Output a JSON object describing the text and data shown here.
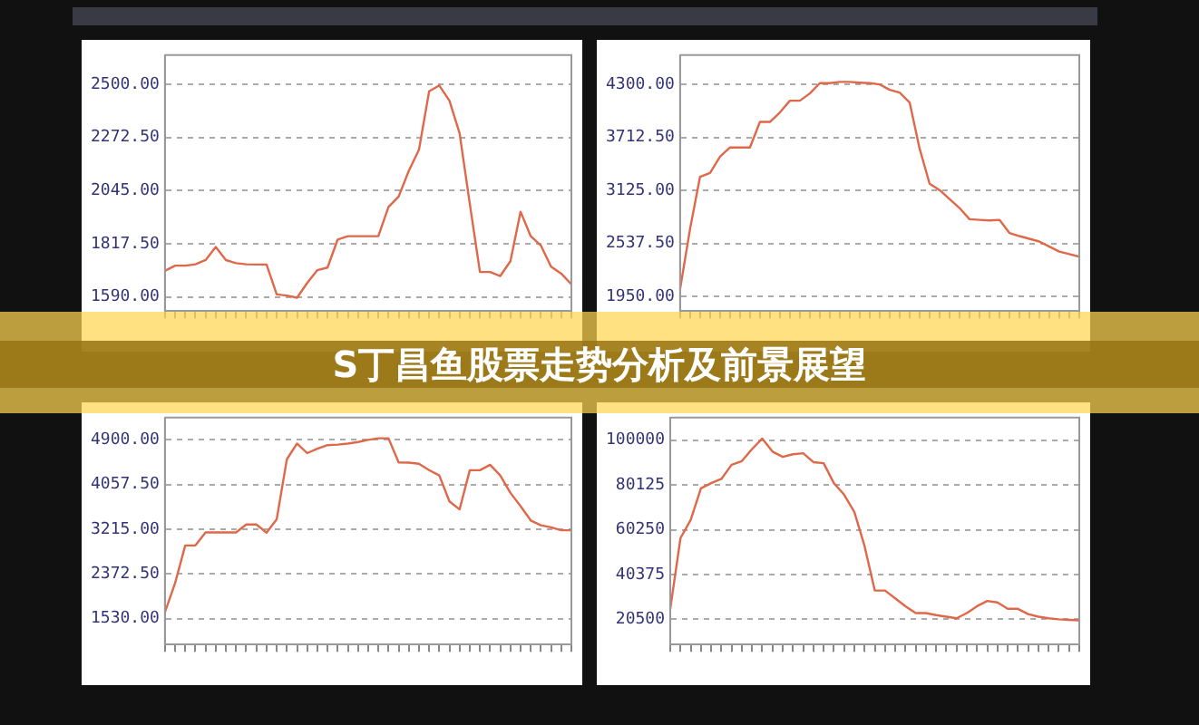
{
  "chart_data": [
    {
      "type": "line",
      "title": "S丁昌鱼股票走势分析及前景展望",
      "categories": [
        null,
        null,
        null,
        null,
        null,
        null,
        null,
        null,
        null,
        null,
        null,
        null,
        null,
        null,
        null,
        null,
        null,
        null,
        null,
        null,
        null,
        null,
        null,
        null,
        null,
        null,
        null,
        null,
        null,
        null,
        null,
        null,
        null,
        null,
        null,
        null,
        null,
        null,
        null,
        null,
        null
      ],
      "series": [
        {
          "color": "#e0684a",
          "values": [
            1702,
            1724,
            1724,
            1730,
            1748,
            1804,
            1748,
            1735,
            1730,
            1729,
            1729,
            1601,
            1596,
            1587,
            1650,
            1705,
            1716,
            1836,
            1850,
            1850,
            1850,
            1850,
            1975,
            2020,
            2130,
            2220,
            2470,
            2495,
            2430,
            2290,
            1990,
            1697,
            1697,
            1680,
            1743,
            1955,
            1850,
            1810,
            1720,
            1690,
            1644
          ]
        }
      ],
      "ylim": [
        1530,
        2625
      ],
      "yticks": [
        {
          "value": 1590,
          "label": "1590.00"
        },
        {
          "value": 1817.5,
          "label": "1817.50"
        },
        {
          "value": 2045,
          "label": "2045.00"
        },
        {
          "value": 2272.5,
          "label": "2272.50"
        },
        {
          "value": 2500,
          "label": "2500.00"
        }
      ],
      "grid": "y",
      "legend": false
    },
    {
      "type": "line",
      "categories": [
        null,
        null,
        null,
        null,
        null,
        null,
        null,
        null,
        null,
        null,
        null,
        null,
        null,
        null,
        null,
        null,
        null,
        null,
        null,
        null,
        null,
        null,
        null,
        null,
        null,
        null,
        null,
        null,
        null,
        null,
        null,
        null,
        null,
        null,
        null,
        null,
        null,
        null,
        null,
        null,
        null
      ],
      "series": [
        {
          "color": "#e0684a",
          "values": [
            2033,
            2700,
            3277,
            3320,
            3500,
            3602,
            3602,
            3602,
            3885,
            3885,
            3990,
            4120,
            4120,
            4200,
            4314,
            4314,
            4328,
            4328,
            4320,
            4314,
            4300,
            4240,
            4210,
            4100,
            3590,
            3200,
            3130,
            3030,
            2931,
            2807,
            2800,
            2793,
            2800,
            2655,
            2620,
            2590,
            2560,
            2503,
            2448,
            2420,
            2392
          ]
        }
      ],
      "ylim": [
        1790,
        4625
      ],
      "yticks": [
        {
          "value": 1950,
          "label": "1950.00"
        },
        {
          "value": 2537.5,
          "label": "2537.50"
        },
        {
          "value": 3125,
          "label": "3125.00"
        },
        {
          "value": 3712.5,
          "label": "3712.50"
        },
        {
          "value": 4300,
          "label": "4300.00"
        }
      ],
      "grid": "y",
      "legend": false
    },
    {
      "type": "line",
      "categories": [
        null,
        null,
        null,
        null,
        null,
        null,
        null,
        null,
        null,
        null,
        null,
        null,
        null,
        null,
        null,
        null,
        null,
        null,
        null,
        null,
        null,
        null,
        null,
        null,
        null,
        null,
        null,
        null,
        null,
        null,
        null,
        null,
        null,
        null,
        null,
        null,
        null,
        null,
        null,
        null,
        null
      ],
      "series": [
        {
          "color": "#e0684a",
          "values": [
            1648,
            2200,
            2909,
            2909,
            3155,
            3155,
            3155,
            3155,
            3303,
            3303,
            3150,
            3402,
            4535,
            4831,
            4650,
            4732,
            4800,
            4810,
            4830,
            4860,
            4900,
            4930,
            4930,
            4476,
            4470,
            4450,
            4330,
            4230,
            3740,
            3589,
            4328,
            4328,
            4430,
            4230,
            3900,
            3650,
            3380,
            3290,
            3250,
            3195,
            3195
          ]
        }
      ],
      "ylim": [
        1040,
        5320
      ],
      "yticks": [
        {
          "value": 1530,
          "label": "1530.00"
        },
        {
          "value": 2372.5,
          "label": "2372.50"
        },
        {
          "value": 3215,
          "label": "3215.00"
        },
        {
          "value": 4057.5,
          "label": "4057.50"
        },
        {
          "value": 4900,
          "label": "4900.00"
        }
      ],
      "grid": "y",
      "legend": false
    },
    {
      "type": "line",
      "categories": [
        null,
        null,
        null,
        null,
        null,
        null,
        null,
        null,
        null,
        null,
        null,
        null,
        null,
        null,
        null,
        null,
        null,
        null,
        null,
        null,
        null,
        null,
        null,
        null,
        null,
        null,
        null,
        null,
        null,
        null,
        null,
        null,
        null,
        null,
        null,
        null,
        null,
        null,
        null,
        null,
        null
      ],
      "series": [
        {
          "color": "#e0684a",
          "values": [
            25140,
            56520,
            64660,
            78610,
            80930,
            82800,
            89070,
            90700,
            96050,
            100700,
            94900,
            92560,
            93720,
            94190,
            90235,
            89770,
            80930,
            75820,
            68150,
            53040,
            33270,
            33270,
            29790,
            26300,
            23275,
            23275,
            22350,
            21650,
            20950,
            23275,
            26300,
            28620,
            28000,
            25140,
            25140,
            22810,
            21650,
            20950,
            20500,
            20250,
            20020
          ]
        }
      ],
      "ylim": [
        9300,
        110000
      ],
      "yticks": [
        20500,
        40375,
        60250,
        80125,
        100000
      ],
      "grid": "y",
      "legend": false
    }
  ]
}
